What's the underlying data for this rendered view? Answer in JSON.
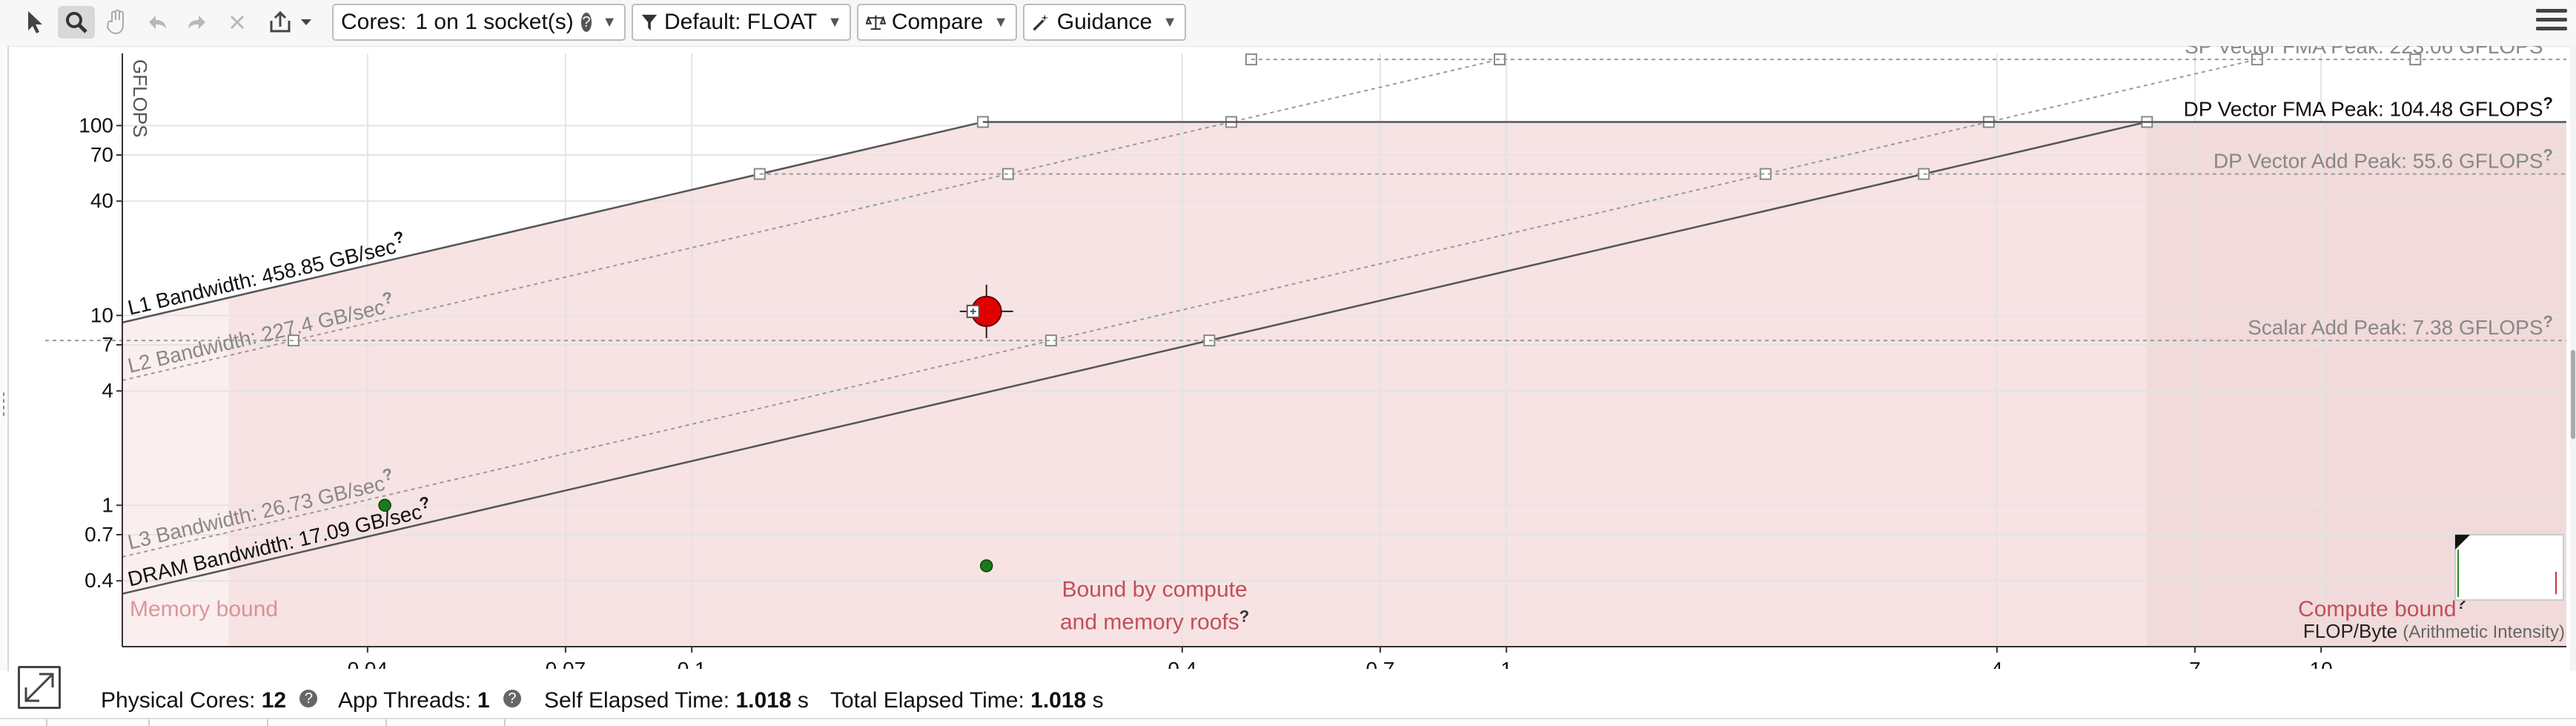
{
  "toolbar": {
    "icons": [
      "select-arrow-icon",
      "zoom-icon",
      "pan-hand-icon",
      "undo-icon",
      "redo-icon",
      "close-icon",
      "export-icon"
    ],
    "cores_label": "Cores:",
    "cores_value": "1 on 1 socket(s)",
    "help_mark": "?",
    "filter_label": "Default: FLOAT",
    "compare_label": "Compare",
    "guidance_label": "Guidance"
  },
  "chart_data": {
    "type": "scatter",
    "title": "",
    "ylabel": "GFLOPS",
    "xlabel": "FLOP/Byte",
    "xlabel_note": "(Arithmetic Intensity)",
    "xscale": "log",
    "yscale": "log",
    "xlim": [
      0.02,
      20
    ],
    "ylim": [
      0.18,
      240
    ],
    "x_ticks": [
      0.04,
      0.07,
      0.1,
      0.4,
      0.7,
      1,
      4,
      7,
      10
    ],
    "x_tick_labels": [
      "0.04",
      "0.07",
      "0.1",
      "0.4",
      "0.7",
      "1",
      "4",
      "7",
      "10"
    ],
    "y_ticks": [
      0.4,
      0.7,
      1,
      4,
      7,
      10,
      40,
      70,
      100
    ],
    "y_tick_labels": [
      "0.4",
      "0.7",
      "1",
      "4",
      "7",
      "10",
      "40",
      "70",
      "100"
    ],
    "compute_roofs": [
      {
        "label": "SP Vector FMA Peak: 223.06 GFLOPS",
        "value": 223.06,
        "style": "dotted"
      },
      {
        "label": "DP Vector FMA Peak: 104.48 GFLOPS",
        "value": 104.48,
        "style": "solid"
      },
      {
        "label": "DP Vector Add Peak: 55.6 GFLOPS",
        "value": 55.6,
        "style": "dotted"
      },
      {
        "label": "Scalar Add Peak: 7.38 GFLOPS",
        "value": 7.38,
        "style": "dotted"
      }
    ],
    "memory_roofs": [
      {
        "label": "L1 Bandwidth: 458.85 GB/sec",
        "value": 458.85,
        "style": "solid"
      },
      {
        "label": "L2 Bandwidth: 227.4 GB/sec",
        "value": 227.4,
        "style": "dotted"
      },
      {
        "label": "L3 Bandwidth: 26.73 GB/sec",
        "value": 26.73,
        "style": "dotted"
      },
      {
        "label": "DRAM Bandwidth: 17.09 GB/sec",
        "value": 17.09,
        "style": "solid"
      }
    ],
    "points": [
      {
        "x": 0.23,
        "y": 10.5,
        "color": "#e00000",
        "size": "large"
      },
      {
        "x": 0.042,
        "y": 1.0,
        "color": "#1a7a1a",
        "size": "small"
      },
      {
        "x": 0.23,
        "y": 0.48,
        "color": "#1a7a1a",
        "size": "small"
      }
    ],
    "regions": {
      "memory_bound": "Memory bound",
      "both_bound_line1": "Bound by compute",
      "both_bound_line2": "and memory roofs",
      "compute_bound": "Compute bound"
    },
    "colors": {
      "region_fill": "#f7e3e3",
      "compute_region_fill": "#f1dada",
      "memory_region_fill": "#fbeeee",
      "region_text": "#c0505a",
      "roof_solid": "#555555",
      "roof_dotted": "#999999",
      "grid": "#e4e4e4"
    }
  },
  "status": {
    "physical_cores_label": "Physical Cores:",
    "physical_cores_value": "12",
    "app_threads_label": "App Threads:",
    "app_threads_value": "1",
    "self_elapsed_label": "Self Elapsed Time:",
    "self_elapsed_value": "1.018",
    "self_elapsed_unit": "s",
    "total_elapsed_label": "Total Elapsed Time:",
    "total_elapsed_value": "1.018",
    "total_elapsed_unit": "s",
    "help_mark": "?"
  }
}
